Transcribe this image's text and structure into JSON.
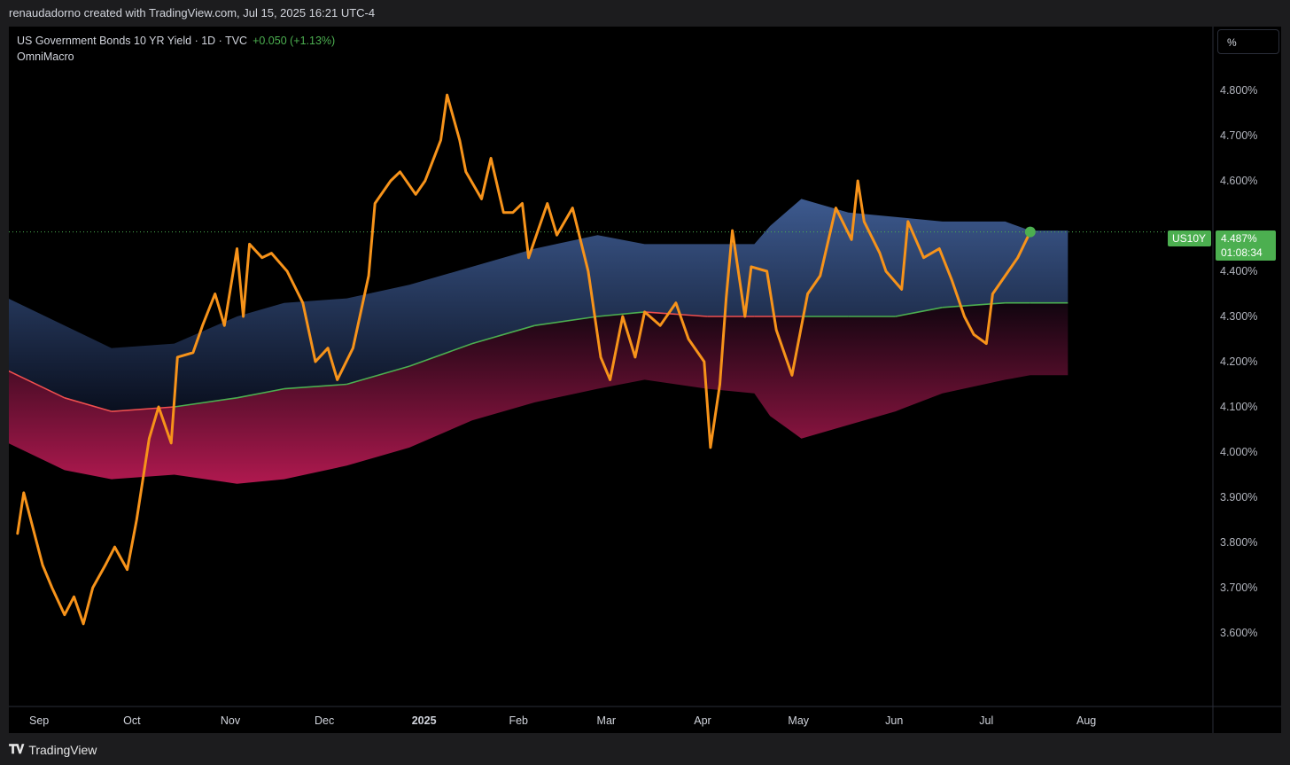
{
  "header": {
    "attribution": "renaudadorno created with TradingView.com, Jul 15, 2025 16:21 UTC-4"
  },
  "legend": {
    "symbol_line": "US Government Bonds 10 YR Yield · 1D · TVC",
    "change": "+0.050 (+1.13%)",
    "indicator": "OmniMacro"
  },
  "unit_button": "%",
  "price_label": {
    "ticker": "US10Y",
    "price": "4.487%",
    "countdown": "01:08:34"
  },
  "footer": {
    "brand": "TradingView"
  },
  "colors": {
    "price_line": "#f7931a",
    "band_upper": "#3d5a8f",
    "band_lower": "#b0194f",
    "ma_above": "#4caf50",
    "ma_below": "#ef4f4f",
    "label_green": "#4caf50"
  },
  "chart_data": {
    "type": "line",
    "title": "US Government Bonds 10 YR Yield · 1D · TVC",
    "ylim": [
      3.5,
      4.85
    ],
    "y_ticks": [
      "4.800%",
      "4.700%",
      "4.600%",
      "4.400%",
      "4.300%",
      "4.200%",
      "4.100%",
      "4.000%",
      "3.900%",
      "3.800%",
      "3.700%",
      "3.600%"
    ],
    "x_ticks": [
      "Sep",
      "Oct",
      "Nov",
      "Dec",
      "2025",
      "Feb",
      "Mar",
      "Apr",
      "May",
      "Jun",
      "Jul",
      "Aug"
    ],
    "last_value": 4.487,
    "series": [
      {
        "name": "US10Y",
        "x": [
          "2024-08-26",
          "2024-08-28",
          "2024-09-03",
          "2024-09-06",
          "2024-09-10",
          "2024-09-13",
          "2024-09-16",
          "2024-09-19",
          "2024-09-23",
          "2024-09-26",
          "2024-09-30",
          "2024-10-03",
          "2024-10-07",
          "2024-10-10",
          "2024-10-14",
          "2024-10-16",
          "2024-10-21",
          "2024-10-24",
          "2024-10-28",
          "2024-10-31",
          "2024-11-04",
          "2024-11-06",
          "2024-11-08",
          "2024-11-12",
          "2024-11-15",
          "2024-11-20",
          "2024-11-25",
          "2024-11-29",
          "2024-12-03",
          "2024-12-06",
          "2024-12-11",
          "2024-12-16",
          "2024-12-18",
          "2024-12-23",
          "2024-12-26",
          "2024-12-31",
          "2025-01-03",
          "2025-01-08",
          "2025-01-10",
          "2025-01-14",
          "2025-01-16",
          "2025-01-21",
          "2025-01-24",
          "2025-01-28",
          "2025-01-31",
          "2025-02-03",
          "2025-02-05",
          "2025-02-11",
          "2025-02-14",
          "2025-02-19",
          "2025-02-24",
          "2025-02-28",
          "2025-03-03",
          "2025-03-07",
          "2025-03-11",
          "2025-03-14",
          "2025-03-19",
          "2025-03-24",
          "2025-03-28",
          "2025-04-02",
          "2025-04-04",
          "2025-04-07",
          "2025-04-09",
          "2025-04-11",
          "2025-04-15",
          "2025-04-17",
          "2025-04-22",
          "2025-04-25",
          "2025-04-30",
          "2025-05-05",
          "2025-05-09",
          "2025-05-14",
          "2025-05-19",
          "2025-05-21",
          "2025-05-23",
          "2025-05-28",
          "2025-05-30",
          "2025-06-04",
          "2025-06-06",
          "2025-06-11",
          "2025-06-16",
          "2025-06-20",
          "2025-06-24",
          "2025-06-27",
          "2025-07-01",
          "2025-07-03",
          "2025-07-08",
          "2025-07-11",
          "2025-07-15"
        ],
        "values": [
          3.82,
          3.91,
          3.75,
          3.7,
          3.64,
          3.68,
          3.62,
          3.7,
          3.75,
          3.79,
          3.74,
          3.85,
          4.03,
          4.1,
          4.02,
          4.21,
          4.22,
          4.28,
          4.35,
          4.28,
          4.45,
          4.3,
          4.46,
          4.43,
          4.44,
          4.4,
          4.33,
          4.2,
          4.23,
          4.16,
          4.23,
          4.39,
          4.55,
          4.6,
          4.62,
          4.57,
          4.6,
          4.69,
          4.79,
          4.69,
          4.62,
          4.56,
          4.65,
          4.53,
          4.53,
          4.55,
          4.43,
          4.55,
          4.48,
          4.54,
          4.4,
          4.21,
          4.16,
          4.3,
          4.21,
          4.31,
          4.28,
          4.33,
          4.25,
          4.2,
          4.01,
          4.15,
          4.34,
          4.49,
          4.3,
          4.41,
          4.4,
          4.27,
          4.17,
          4.35,
          4.39,
          4.54,
          4.47,
          4.6,
          4.51,
          4.44,
          4.4,
          4.36,
          4.51,
          4.43,
          4.45,
          4.38,
          4.3,
          4.26,
          4.24,
          4.35,
          4.4,
          4.43,
          4.487
        ]
      }
    ]
  }
}
